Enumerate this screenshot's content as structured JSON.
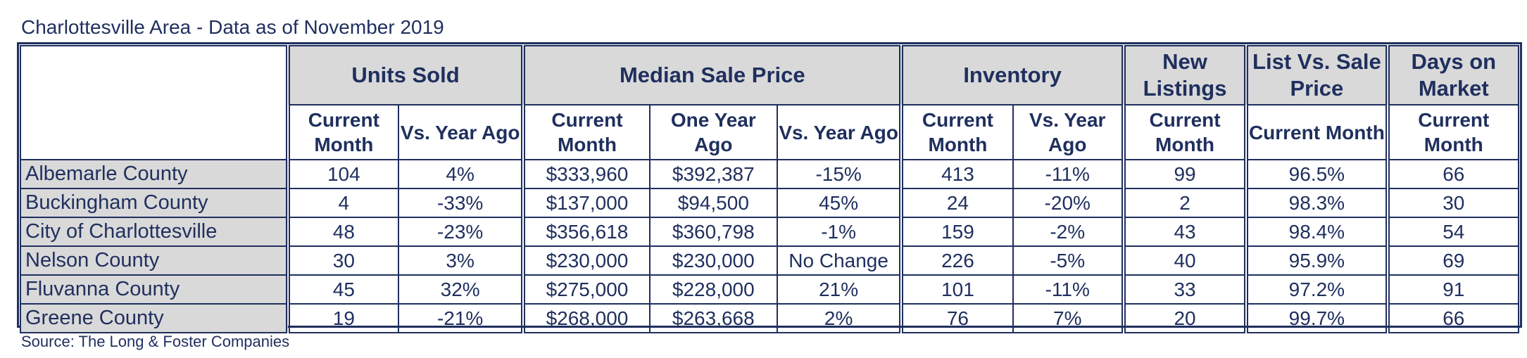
{
  "title": "Charlottesville Area - Data as of November 2019",
  "source": "Source: The Long & Foster Companies",
  "groups": [
    {
      "label": "Units Sold"
    },
    {
      "label": "Median Sale Price"
    },
    {
      "label": "Inventory"
    },
    {
      "label": "New Listings"
    },
    {
      "label": "List Vs. Sale Price"
    },
    {
      "label": "Days on Market"
    }
  ],
  "subheaders": [
    "Current Month",
    "Vs. Year Ago",
    "Current Month",
    "One Year Ago",
    "Vs. Year Ago",
    "Current Month",
    "Vs. Year Ago",
    "Current Month",
    "Current Month",
    "Current Month"
  ],
  "rows": [
    {
      "area": "Albemarle County",
      "values": [
        "104",
        "4%",
        "$333,960",
        "$392,387",
        "-15%",
        "413",
        "-11%",
        "99",
        "96.5%",
        "66"
      ]
    },
    {
      "area": "Buckingham County",
      "values": [
        "4",
        "-33%",
        "$137,000",
        "$94,500",
        "45%",
        "24",
        "-20%",
        "2",
        "98.3%",
        "30"
      ]
    },
    {
      "area": "City of Charlottesville",
      "values": [
        "48",
        "-23%",
        "$356,618",
        "$360,798",
        "-1%",
        "159",
        "-2%",
        "43",
        "98.4%",
        "54"
      ]
    },
    {
      "area": "Nelson County",
      "values": [
        "30",
        "3%",
        "$230,000",
        "$230,000",
        "No Change",
        "226",
        "-5%",
        "40",
        "95.9%",
        "69"
      ]
    },
    {
      "area": "Fluvanna County",
      "values": [
        "45",
        "32%",
        "$275,000",
        "$228,000",
        "21%",
        "101",
        "-11%",
        "33",
        "97.2%",
        "91"
      ]
    },
    {
      "area": "Greene County",
      "values": [
        "19",
        "-21%",
        "$268,000",
        "$263,668",
        "2%",
        "76",
        "7%",
        "20",
        "99.7%",
        "66"
      ]
    }
  ]
}
